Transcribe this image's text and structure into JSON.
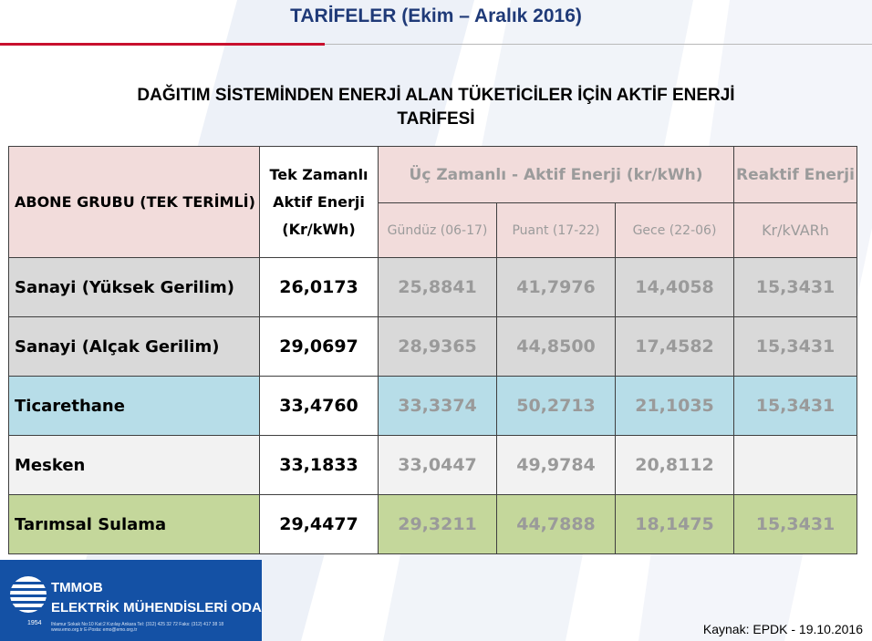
{
  "slide_title": "TARİFELER (Ekim – Aralık 2016)",
  "subtitle_line1": "DAĞITIM SİSTEMİNDEN ENERJİ ALAN TÜKETİCİLER İÇİN AKTİF ENERJİ",
  "subtitle_line2": "TARİFESİ",
  "table": {
    "header": {
      "group": "ABONE GRUBU (TEK TERİMLİ)",
      "single_line1": "Tek Zamanlı",
      "single_line2": "Aktif Enerji",
      "single_line3": "(Kr/kWh)",
      "tou": "Üç Zamanlı - Aktif Enerji (kr/kWh)",
      "reactive": "Reaktif Enerji",
      "sub_day": "Gündüz (06-17)",
      "sub_peak": "Puant (17-22)",
      "sub_night": "Gece (22-06)",
      "sub_reactive_unit": "Kr/kVARh"
    },
    "rows": [
      {
        "group": "Sanayi (Yüksek Gerilim)",
        "single": "26,0173",
        "day": "25,8841",
        "peak": "41,7976",
        "night": "14,4058",
        "reactive": "15,3431",
        "bg": "#d9d9d9"
      },
      {
        "group": "Sanayi (Alçak Gerilim)",
        "single": "29,0697",
        "day": "28,9365",
        "peak": "44,8500",
        "night": "17,4582",
        "reactive": "15,3431",
        "bg": "#d9d9d9"
      },
      {
        "group": "Ticarethane",
        "single": "33,4760",
        "day": "33,3374",
        "peak": "50,2713",
        "night": "21,1035",
        "reactive": "15,3431",
        "bg": "#b7dde8"
      },
      {
        "group": "Mesken",
        "single": "33,1833",
        "day": "33,0447",
        "peak": "49,9784",
        "night": "20,8112",
        "reactive": "",
        "bg": "#f2f2f2"
      },
      {
        "group": "Tarımsal Sulama",
        "single": "29,4477",
        "day": "29,3211",
        "peak": "44,7888",
        "night": "18,1475",
        "reactive": "15,3431",
        "bg": "#c4d79b"
      }
    ],
    "single_col_bg": "#ffffff",
    "header_bg": "#f2dcdb"
  },
  "logo": {
    "name1": "TMMOB",
    "name2": "ELEKTRİK MÜHENDİSLERİ ODASI",
    "year": "1954",
    "small_text": "Ihlamur Sokak No:10 Kat:2 Kızılay Ankara Tel: (312) 425 32 72 Faks: (312) 417 38 18 www.emo.org.tr E-Posta: emo@emo.org.tr",
    "bg": "#1451a5"
  },
  "source": "Kaynak: EPDK - 19.10.2016",
  "colors": {
    "title": "#1f3a78",
    "accent_red": "#c8102e",
    "muted_text": "#9a9a9a"
  }
}
